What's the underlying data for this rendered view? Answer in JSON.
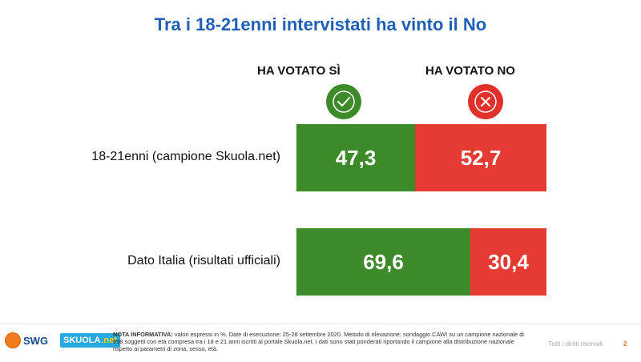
{
  "title": "Tra i 18-21enni intervistati ha vinto il No",
  "colors": {
    "yes": "#3d8a2a",
    "no": "#e63b33",
    "title": "#1f5fb8"
  },
  "chart_data": {
    "type": "bar",
    "orientation": "horizontal",
    "stacked": true,
    "percent_stacked": true,
    "title": "Tra i 18-21enni intervistati ha vinto il No",
    "categories": [
      "18-21enni (campione Skuola.net)",
      "Dato Italia (risultati ufficiali)"
    ],
    "series": [
      {
        "name": "HA VOTATO SÌ",
        "values": [
          47.3,
          69.6
        ],
        "labels": [
          "47,3",
          "69,6"
        ],
        "color": "#3d8a2a"
      },
      {
        "name": "HA VOTATO NO",
        "values": [
          52.7,
          30.4
        ],
        "labels": [
          "52,7",
          "30,4"
        ],
        "color": "#e63b33"
      }
    ],
    "xlim": [
      0,
      100
    ]
  },
  "icons": {
    "yes": "check-icon",
    "no": "cross-icon"
  },
  "footer": {
    "logo_swg": "SWG",
    "logo_skuola": "SKUOLA",
    "logo_skuola_net": ".net",
    "note_label": "NOTA INFORMATIVA:",
    "note_text": "valori espressi in %. Date di esecuzione: 25-28 settembre 2020. Metodo di rilevazione: sondaggio CAWI su un campione nazionale di 998 soggetti con età compresa tra i 18 e 21 anni iscritti al portale Skuola.net. I dati sono stati ponderati riportando il campione alla distribuzione nazionale rispetto ai parametri di zona, sesso, età.",
    "rights": "Tutti i diritti riservati",
    "page": "2"
  }
}
